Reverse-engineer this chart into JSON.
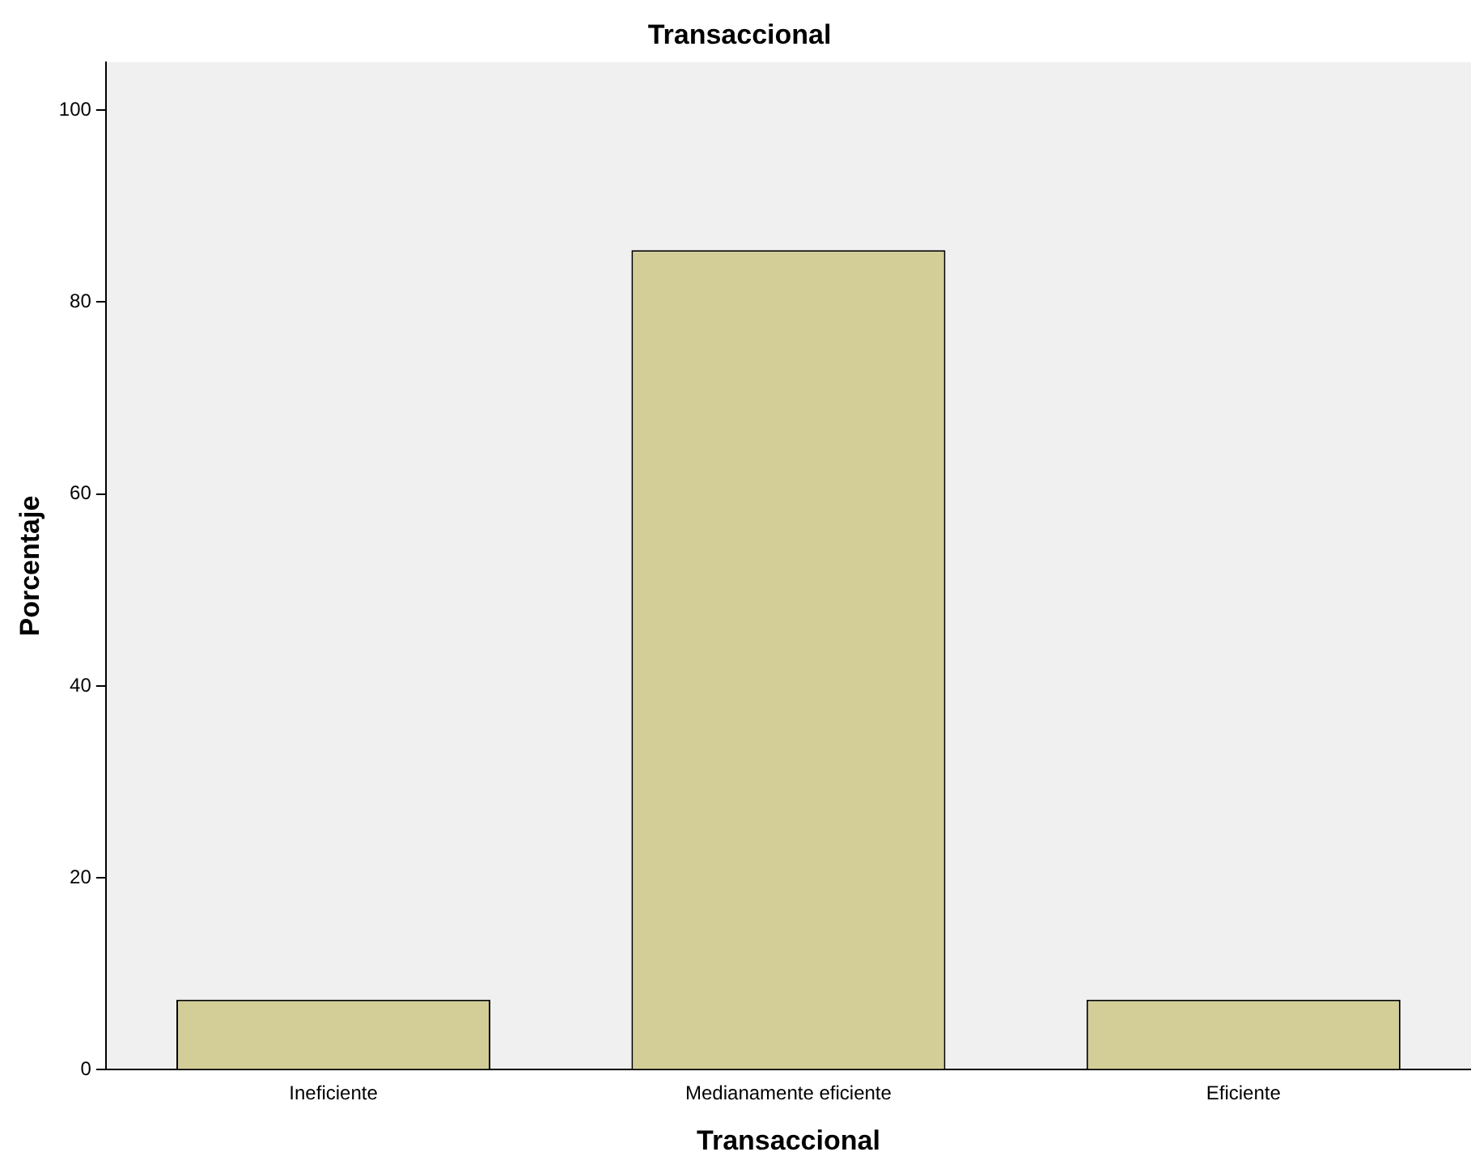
{
  "chart_data": {
    "type": "bar",
    "title": "Transaccional",
    "xlabel": "Transaccional",
    "ylabel": "Porcentaje",
    "categories": [
      "Ineficiente",
      "Medianamente eficiente",
      "Eficiente"
    ],
    "values": [
      7.3,
      85.4,
      7.3
    ],
    "color": "#d3ce97",
    "ylim": [
      0,
      105
    ],
    "yticks": [
      0,
      20,
      40,
      60,
      80,
      100
    ],
    "grid": false,
    "legend": false
  }
}
